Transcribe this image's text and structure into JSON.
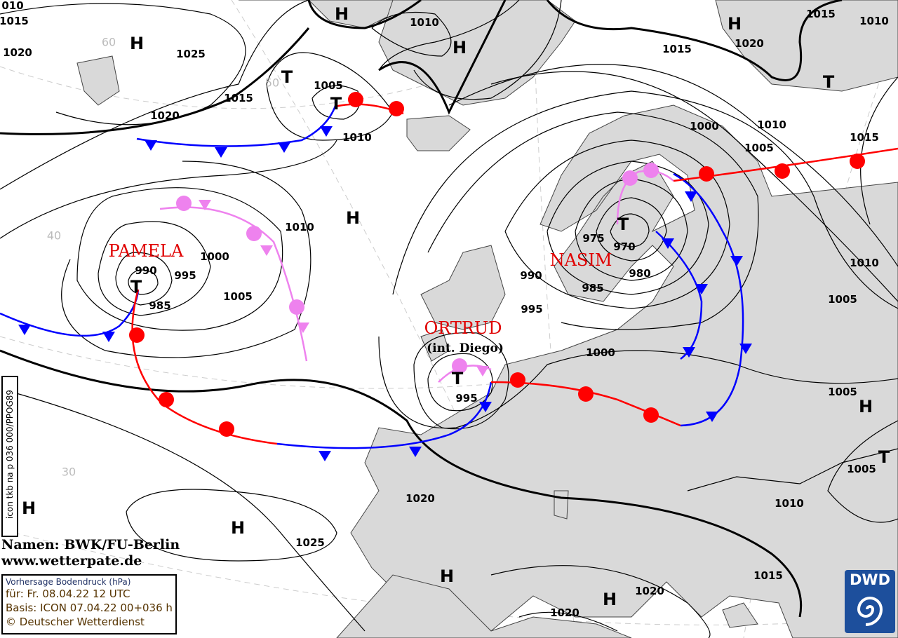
{
  "map": {
    "title": "Vorhersage Bodendruck (hPa)",
    "valid": "für:  Fr. 08.04.22  12 UTC",
    "basis": "Basis: ICON  07.04.22 00+036 h",
    "copyright": "© Deutscher Wetterdienst",
    "run_id": "icon tkb na p 036 000/PPOG89",
    "credits": [
      "Namen: BWK/FU-Berlin",
      "www.wetterpate.de"
    ],
    "logo": "DWD",
    "colors": {
      "land": "#d9d9d9",
      "sea": "#ffffff",
      "warm_front": "#ff0000",
      "cold_front": "#0000ff",
      "occlusion": "#ee82ee",
      "names": "#e00000"
    },
    "isobar_labels": [
      "1015",
      "1020",
      "1025",
      "1020",
      "1015",
      "1005",
      "1010",
      "1010",
      "1015",
      "1020",
      "1015",
      "1010",
      "1000",
      "1010",
      "1005",
      "1015",
      "975",
      "970",
      "980",
      "990",
      "985",
      "995",
      "1010",
      "1005",
      "1000",
      "1010",
      "1000",
      "990",
      "995",
      "985",
      "1005",
      "995",
      "1005",
      "1005",
      "1020",
      "1010",
      "1025",
      "1015",
      "1020",
      "1020",
      "010"
    ],
    "pressure_centers": [
      "H",
      "H",
      "H",
      "H",
      "T",
      "T",
      "T",
      "H",
      "T",
      "T",
      "T",
      "H",
      "T",
      "H",
      "H",
      "H",
      "H"
    ],
    "system_names": [
      "PAMELA",
      "NASIM",
      "ORTRUD",
      "(int. Diego)"
    ],
    "latitude_labels": [
      "60",
      "50",
      "40",
      "30"
    ]
  }
}
